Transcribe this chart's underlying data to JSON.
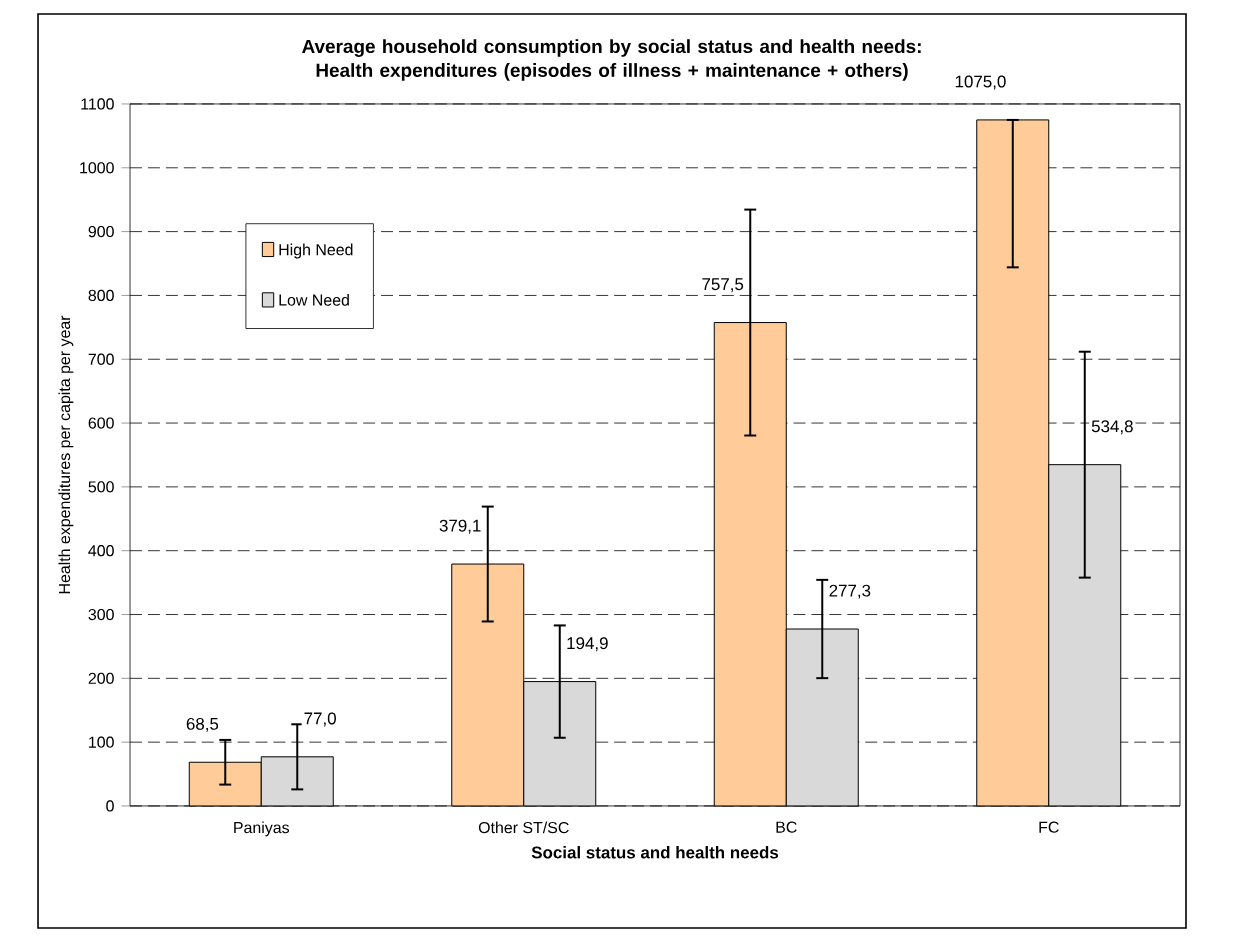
{
  "chart_data": {
    "type": "bar",
    "title": "Average household consumption by social status and health needs:\nHealth expenditures (episodes of illness + maintenance + others)",
    "xlabel": "Social status and health needs",
    "ylabel": "Health expenditures  per capita per year",
    "categories": [
      "Paniyas",
      "Other ST/SC",
      "BC",
      "FC"
    ],
    "series": [
      {
        "name": "High Need",
        "color": "#ffcc99",
        "values": [
          68.5,
          379.1,
          757.5,
          1075.0
        ],
        "value_labels": [
          "68,5",
          "379,1",
          "757,5",
          "1075,0"
        ],
        "errors": [
          35,
          90,
          177,
          [
            844,
            1075
          ]
        ]
      },
      {
        "name": "Low Need",
        "color": "#d9d9d9",
        "values": [
          77.0,
          194.9,
          277.3,
          534.8
        ],
        "value_labels": [
          "77,0",
          "194,9",
          "277,3",
          "534,8"
        ],
        "errors": [
          51,
          88,
          77,
          177
        ]
      }
    ],
    "ylim": [
      0,
      1100
    ],
    "yticks": [
      0,
      100,
      200,
      300,
      400,
      500,
      600,
      700,
      800,
      900,
      1000,
      1100
    ],
    "grid": "y",
    "legend": "top left"
  }
}
